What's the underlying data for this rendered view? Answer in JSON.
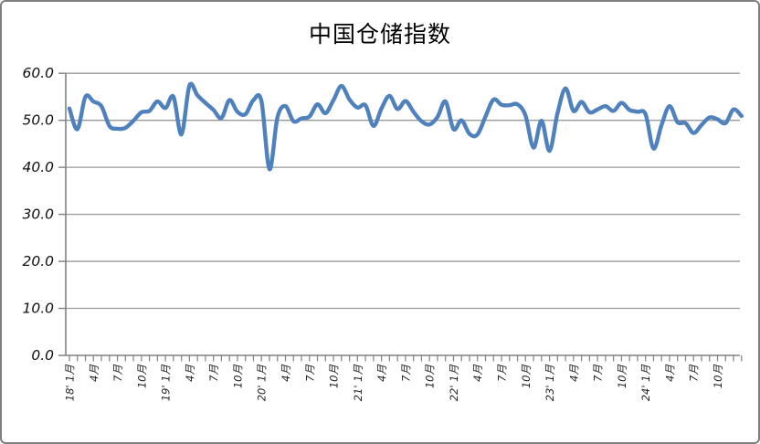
{
  "title": "中国仓储指数",
  "colors": {
    "line": "#4F81BD",
    "gridline": "#999999",
    "axis": "#808080",
    "tick": "#808080",
    "label_text": "#1a1a1a",
    "border": "#7f7f7f",
    "background": "#ffffff"
  },
  "y_axis": {
    "tick_labels": [
      "60.0",
      "50.0",
      "40.0",
      "30.0",
      "20.0",
      "10.0",
      "0.0"
    ],
    "min": 0,
    "max": 60,
    "step": 10
  },
  "x_axis": {
    "tick_labels": [
      {
        "month_index": 0,
        "label": "18' 1月"
      },
      {
        "month_index": 3,
        "label": "4月"
      },
      {
        "month_index": 6,
        "label": "7月"
      },
      {
        "month_index": 9,
        "label": "10月"
      },
      {
        "month_index": 12,
        "label": "19' 1月"
      },
      {
        "month_index": 15,
        "label": "4月"
      },
      {
        "month_index": 18,
        "label": "7月"
      },
      {
        "month_index": 21,
        "label": "10月"
      },
      {
        "month_index": 24,
        "label": "20' 1月"
      },
      {
        "month_index": 27,
        "label": "4月"
      },
      {
        "month_index": 30,
        "label": "7月"
      },
      {
        "month_index": 33,
        "label": "10月"
      },
      {
        "month_index": 36,
        "label": "21' 1月"
      },
      {
        "month_index": 39,
        "label": "4月"
      },
      {
        "month_index": 42,
        "label": "7月"
      },
      {
        "month_index": 45,
        "label": "10月"
      },
      {
        "month_index": 48,
        "label": "22' 1月"
      },
      {
        "month_index": 51,
        "label": "4月"
      },
      {
        "month_index": 54,
        "label": "7月"
      },
      {
        "month_index": 57,
        "label": "10月"
      },
      {
        "month_index": 60,
        "label": "23' 1月"
      },
      {
        "month_index": 63,
        "label": "4月"
      },
      {
        "month_index": 66,
        "label": "7月"
      },
      {
        "month_index": 69,
        "label": "10月"
      },
      {
        "month_index": 72,
        "label": "24' 1月"
      },
      {
        "month_index": 75,
        "label": "4月"
      },
      {
        "month_index": 78,
        "label": "7月"
      },
      {
        "month_index": 81,
        "label": "10月"
      }
    ]
  },
  "chart_data": {
    "type": "line",
    "title": "中国仓储指数",
    "xlabel": "",
    "ylabel": "",
    "x_start": "2018-01",
    "x_end": "2025-01",
    "frequency": "monthly",
    "ylim": [
      0,
      60
    ],
    "y_step": 10,
    "grid": "horizontal",
    "legend_position": "none",
    "smoothed": true,
    "series": [
      {
        "name": "中国仓储指数",
        "color": "#4F81BD",
        "values": [
          52.5,
          48.1,
          55.0,
          54.0,
          53.0,
          48.8,
          48.2,
          48.4,
          49.9,
          51.7,
          52.0,
          54.0,
          52.6,
          55.0,
          47.0,
          57.4,
          55.3,
          53.7,
          52.2,
          50.5,
          54.3,
          51.8,
          51.3,
          54.3,
          54.1,
          39.6,
          50.6,
          53.0,
          49.8,
          50.4,
          50.8,
          53.4,
          51.5,
          54.3,
          57.3,
          54.4,
          52.7,
          53.2,
          48.8,
          52.5,
          55.2,
          52.4,
          54.1,
          51.8,
          49.8,
          49.1,
          50.7,
          54.0,
          48.1,
          50.0,
          47.1,
          47.0,
          50.8,
          54.4,
          53.3,
          53.2,
          53.4,
          51.0,
          44.2,
          49.9,
          43.5,
          51.5,
          56.8,
          52.0,
          53.9,
          51.7,
          52.3,
          53.0,
          52.0,
          53.7,
          52.2,
          51.8,
          51.3,
          44.0,
          49.0,
          53.0,
          49.6,
          49.4,
          47.3,
          49.0,
          50.6,
          50.2,
          49.4,
          52.3,
          50.9
        ]
      }
    ]
  }
}
